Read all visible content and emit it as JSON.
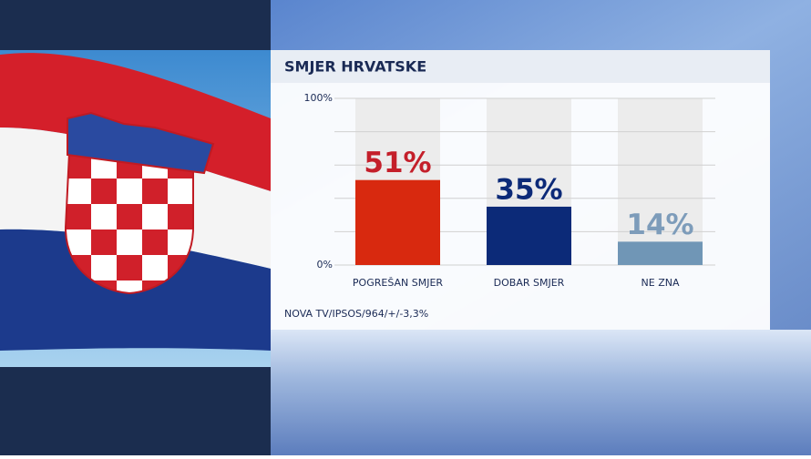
{
  "chart_data": {
    "type": "bar",
    "title": "SMJER HRVATSKE",
    "categories": [
      "POGREŠAN SMJER",
      "DOBAR SMJER",
      "NE ZNA"
    ],
    "values": [
      51,
      35,
      14
    ],
    "value_labels": [
      "51%",
      "35%",
      "14%"
    ],
    "colors": [
      "#d8290f",
      "#0c2a78",
      "#7096b6"
    ],
    "label_colors": [
      "#c41f2a",
      "#0c2a78",
      "#7d9cba"
    ],
    "ylim": [
      0,
      100
    ],
    "yticks": [
      {
        "value": 0,
        "label": "0%"
      },
      {
        "value": 100,
        "label": "100%"
      }
    ],
    "ygrid": [
      0,
      20,
      40,
      60,
      80,
      100
    ],
    "source": "NOVA TV/IPSOS/964/+/-3,3%"
  }
}
